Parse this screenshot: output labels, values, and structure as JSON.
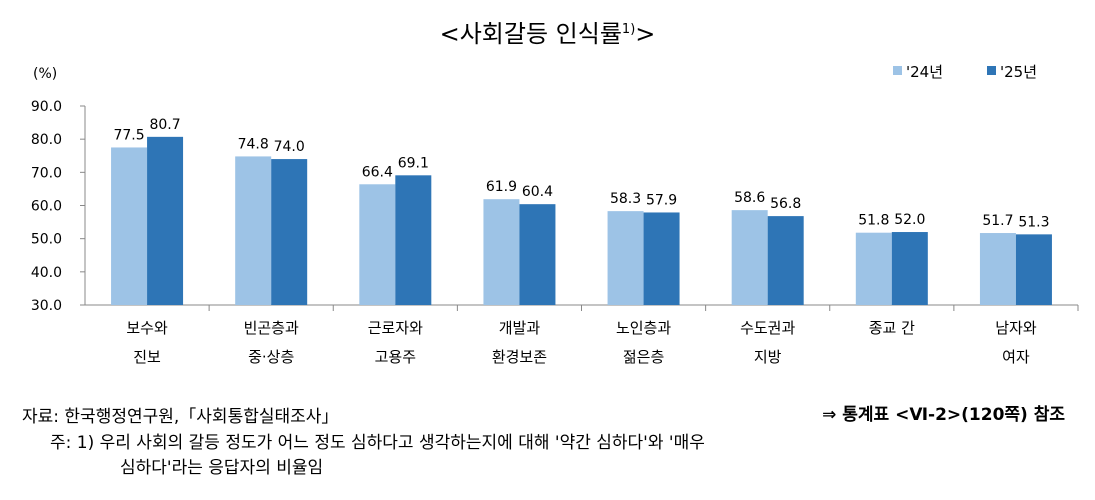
{
  "chart_data": {
    "type": "bar",
    "title": "<사회갈등 인식률",
    "title_sup": "1)",
    "title_end": ">",
    "ylabel": "(%)",
    "ylim": [
      30,
      90
    ],
    "yticks": [
      "30.0",
      "40.0",
      "50.0",
      "60.0",
      "70.0",
      "80.0",
      "90.0"
    ],
    "categories": [
      [
        "보수와",
        "진보"
      ],
      [
        "빈곤층과",
        "중·상층"
      ],
      [
        "근로자와",
        "고용주"
      ],
      [
        "개발과",
        "환경보존"
      ],
      [
        "노인층과",
        "젊은층"
      ],
      [
        "수도권과",
        "지방"
      ],
      [
        "종교 간",
        ""
      ],
      [
        "남자와",
        "여자"
      ]
    ],
    "series": [
      {
        "name": "'24년",
        "color": "#9dc3e6",
        "values": [
          77.5,
          74.8,
          66.4,
          61.9,
          58.3,
          58.6,
          51.8,
          51.7
        ]
      },
      {
        "name": "'25년",
        "color": "#2e75b6",
        "values": [
          80.7,
          74.0,
          69.1,
          60.4,
          57.9,
          56.8,
          52.0,
          51.3
        ]
      }
    ],
    "legend": "top-right"
  },
  "notes": {
    "source": "자료: 한국행정연구원,「사회통합실태조사」",
    "reference": "⇒ 통계표 <Ⅵ-2>(120쪽) 참조",
    "footnote1": "주: 1) 우리 사회의 갈등 정도가 어느 정도 심하다고 생각하는지에 대해 '약간 심하다'와 '매우",
    "footnote2": "심하다'라는 응답자의 비율임"
  }
}
